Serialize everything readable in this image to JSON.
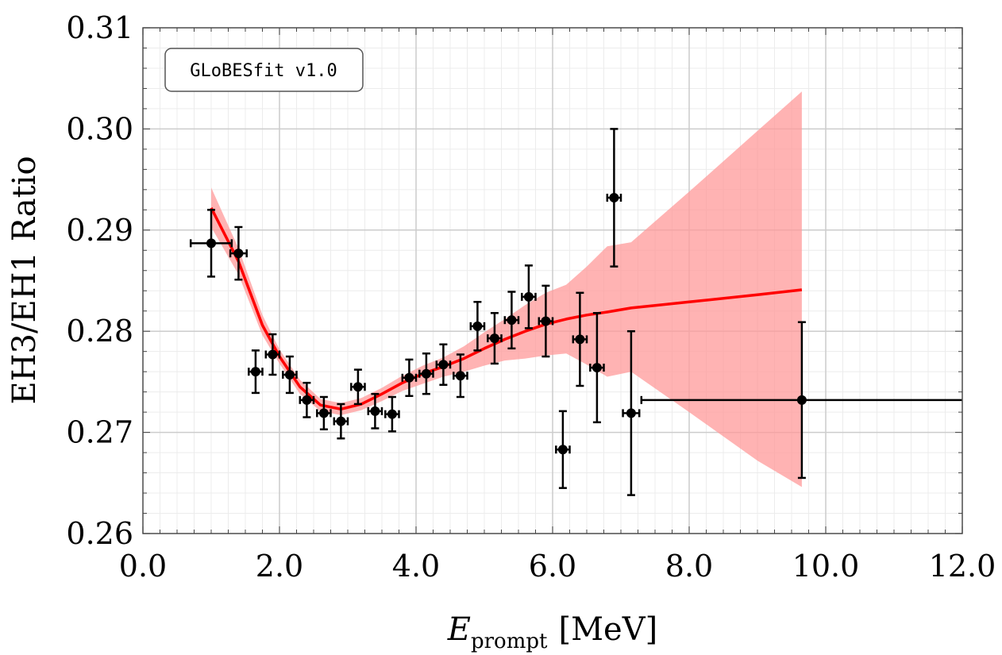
{
  "chart_data": {
    "type": "scatter",
    "annotation": "GLoBESfit v1.0",
    "ylabel": "EH3/EH1 Ratio",
    "xlabel_main": "E",
    "xlabel_sub": "prompt",
    "xlabel_unit": "[MeV]",
    "xlim": [
      0,
      12
    ],
    "ylim": [
      0.26,
      0.31
    ],
    "x_ticks": [
      0,
      2,
      4,
      6,
      8,
      10,
      12
    ],
    "x_tick_labels": [
      "0.0",
      "2.0",
      "4.0",
      "6.0",
      "8.0",
      "10.0",
      "12.0"
    ],
    "y_ticks": [
      0.26,
      0.27,
      0.28,
      0.29,
      0.3,
      0.31
    ],
    "y_tick_labels": [
      "0.26",
      "0.27",
      "0.28",
      "0.29",
      "0.30",
      "0.31"
    ],
    "grid": true,
    "colors": {
      "data": "#000000",
      "fit": "#ff0000",
      "band": "#ff9999"
    },
    "data_points": [
      {
        "x": 1.0,
        "y": 0.2887,
        "xerr": 0.3,
        "yerr": 0.0033
      },
      {
        "x": 1.4,
        "y": 0.2877,
        "xerr": 0.12,
        "yerr": 0.0026
      },
      {
        "x": 1.65,
        "y": 0.276,
        "xerr": 0.1,
        "yerr": 0.0021
      },
      {
        "x": 1.9,
        "y": 0.2777,
        "xerr": 0.1,
        "yerr": 0.002
      },
      {
        "x": 2.15,
        "y": 0.2757,
        "xerr": 0.1,
        "yerr": 0.0018
      },
      {
        "x": 2.4,
        "y": 0.2732,
        "xerr": 0.1,
        "yerr": 0.0017
      },
      {
        "x": 2.65,
        "y": 0.2719,
        "xerr": 0.1,
        "yerr": 0.0016
      },
      {
        "x": 2.9,
        "y": 0.2711,
        "xerr": 0.1,
        "yerr": 0.0017
      },
      {
        "x": 3.15,
        "y": 0.2745,
        "xerr": 0.1,
        "yerr": 0.0017
      },
      {
        "x": 3.4,
        "y": 0.2721,
        "xerr": 0.1,
        "yerr": 0.0017
      },
      {
        "x": 3.65,
        "y": 0.2718,
        "xerr": 0.1,
        "yerr": 0.0017
      },
      {
        "x": 3.9,
        "y": 0.2754,
        "xerr": 0.1,
        "yerr": 0.0018
      },
      {
        "x": 4.15,
        "y": 0.2758,
        "xerr": 0.1,
        "yerr": 0.002
      },
      {
        "x": 4.4,
        "y": 0.2767,
        "xerr": 0.1,
        "yerr": 0.002
      },
      {
        "x": 4.65,
        "y": 0.2756,
        "xerr": 0.1,
        "yerr": 0.0021
      },
      {
        "x": 4.9,
        "y": 0.2805,
        "xerr": 0.1,
        "yerr": 0.0024
      },
      {
        "x": 5.15,
        "y": 0.2793,
        "xerr": 0.1,
        "yerr": 0.0025
      },
      {
        "x": 5.4,
        "y": 0.2811,
        "xerr": 0.1,
        "yerr": 0.0028
      },
      {
        "x": 5.65,
        "y": 0.2834,
        "xerr": 0.1,
        "yerr": 0.0031
      },
      {
        "x": 5.9,
        "y": 0.281,
        "xerr": 0.1,
        "yerr": 0.0035
      },
      {
        "x": 6.15,
        "y": 0.2683,
        "xerr": 0.1,
        "yerr": 0.0038
      },
      {
        "x": 6.4,
        "y": 0.2792,
        "xerr": 0.1,
        "yerr": 0.0046
      },
      {
        "x": 6.65,
        "y": 0.2764,
        "xerr": 0.1,
        "yerr": 0.0054
      },
      {
        "x": 6.9,
        "y": 0.2932,
        "xerr": 0.1,
        "yerr": 0.0068
      },
      {
        "x": 7.15,
        "y": 0.2719,
        "xerr": 0.12,
        "yerr": 0.0081
      },
      {
        "x": 9.65,
        "y": 0.2732,
        "xerr": 2.35,
        "yerr": 0.0077
      }
    ],
    "fit_line": {
      "x": [
        1.0,
        1.4,
        1.75,
        2.0,
        2.3,
        2.6,
        2.9,
        3.2,
        3.5,
        3.8,
        4.1,
        4.4,
        4.7,
        5.0,
        5.3,
        5.6,
        5.9,
        6.2,
        6.5,
        6.8,
        7.15,
        8.0,
        9.0,
        9.65
      ],
      "y": [
        0.2922,
        0.2869,
        0.2806,
        0.2775,
        0.2745,
        0.2727,
        0.2723,
        0.2728,
        0.2738,
        0.2749,
        0.2758,
        0.2765,
        0.2773,
        0.2783,
        0.2792,
        0.28,
        0.2807,
        0.2812,
        0.2816,
        0.2819,
        0.2823,
        0.2829,
        0.2836,
        0.2841
      ]
    },
    "fit_band": {
      "x": [
        1.0,
        1.4,
        1.75,
        2.0,
        2.3,
        2.6,
        2.9,
        3.2,
        3.5,
        3.8,
        4.1,
        4.4,
        4.7,
        5.0,
        5.3,
        5.6,
        5.9,
        6.2,
        6.5,
        6.8,
        7.15,
        8.0,
        9.0,
        9.65
      ],
      "upper": [
        0.2942,
        0.2882,
        0.2816,
        0.2782,
        0.2752,
        0.2733,
        0.2729,
        0.2734,
        0.2744,
        0.2756,
        0.2766,
        0.2774,
        0.2785,
        0.2799,
        0.2812,
        0.2826,
        0.2838,
        0.2846,
        0.2864,
        0.2884,
        0.2888,
        0.2938,
        0.2998,
        0.3037
      ],
      "lower": [
        0.2903,
        0.2856,
        0.2796,
        0.2768,
        0.2738,
        0.2721,
        0.2717,
        0.2722,
        0.2731,
        0.2741,
        0.2748,
        0.2755,
        0.276,
        0.2766,
        0.2771,
        0.2773,
        0.2776,
        0.2778,
        0.2767,
        0.2755,
        0.276,
        0.272,
        0.2672,
        0.2646
      ]
    }
  }
}
